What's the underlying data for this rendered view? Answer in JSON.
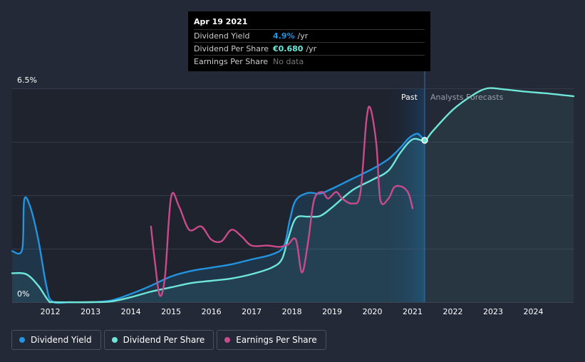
{
  "tooltip": {
    "date": "Apr 19 2021",
    "rows": [
      {
        "label": "Dividend Yield",
        "value": "4.9%",
        "unit": "/yr",
        "color": "#2394df"
      },
      {
        "label": "Dividend Per Share",
        "value": "€0.680",
        "unit": "/yr",
        "color": "#6ee7d8"
      },
      {
        "label": "Earnings Per Share",
        "value": "No data",
        "unit": "",
        "color": "#777777"
      }
    ]
  },
  "legend": [
    {
      "label": "Dividend Yield",
      "color": "#2394df"
    },
    {
      "label": "Dividend Per Share",
      "color": "#6ee7d8"
    },
    {
      "label": "Earnings Per Share",
      "color": "#c94b8c"
    }
  ],
  "chart_data": {
    "type": "line",
    "y_top_label": "6.5%",
    "y_bottom_label": "0%",
    "ylim": [
      0,
      6.5
    ],
    "xlim": [
      2011.05,
      2025.0
    ],
    "x_ticks": [
      2012,
      2013,
      2014,
      2015,
      2016,
      2017,
      2018,
      2019,
      2020,
      2021,
      2022,
      2023,
      2024
    ],
    "past_label": "Past",
    "forecast_label": "Analysts Forecasts",
    "past_band_start": 2020.3,
    "current_x": 2021.3,
    "grid": true,
    "series": [
      {
        "name": "Dividend Yield",
        "color": "#2394df",
        "points": [
          [
            2011.05,
            1.55
          ],
          [
            2011.3,
            1.6
          ],
          [
            2011.35,
            3.1
          ],
          [
            2011.5,
            2.9
          ],
          [
            2011.7,
            1.9
          ],
          [
            2011.9,
            0.5
          ],
          [
            2012.05,
            0.02
          ],
          [
            2012.5,
            0.0
          ],
          [
            2013.0,
            0.0
          ],
          [
            2013.5,
            0.05
          ],
          [
            2014.0,
            0.25
          ],
          [
            2014.5,
            0.5
          ],
          [
            2015.0,
            0.78
          ],
          [
            2015.5,
            0.95
          ],
          [
            2016.0,
            1.05
          ],
          [
            2016.5,
            1.15
          ],
          [
            2017.0,
            1.3
          ],
          [
            2017.5,
            1.45
          ],
          [
            2017.8,
            1.7
          ],
          [
            2017.95,
            2.5
          ],
          [
            2018.1,
            3.1
          ],
          [
            2018.4,
            3.32
          ],
          [
            2018.7,
            3.3
          ],
          [
            2019.0,
            3.45
          ],
          [
            2019.5,
            3.75
          ],
          [
            2020.0,
            4.05
          ],
          [
            2020.4,
            4.35
          ],
          [
            2020.7,
            4.7
          ],
          [
            2020.9,
            4.98
          ],
          [
            2021.1,
            5.12
          ],
          [
            2021.2,
            5.05
          ],
          [
            2021.3,
            4.9
          ]
        ]
      },
      {
        "name": "Dividend Per Share",
        "color": "#6ee7d8",
        "points": [
          [
            2011.05,
            0.88
          ],
          [
            2011.4,
            0.85
          ],
          [
            2011.7,
            0.5
          ],
          [
            2011.95,
            0.05
          ],
          [
            2012.1,
            0.0
          ],
          [
            2013.0,
            0.0
          ],
          [
            2013.5,
            0.02
          ],
          [
            2014.0,
            0.15
          ],
          [
            2014.5,
            0.32
          ],
          [
            2015.0,
            0.45
          ],
          [
            2015.5,
            0.58
          ],
          [
            2016.0,
            0.65
          ],
          [
            2016.5,
            0.72
          ],
          [
            2017.0,
            0.85
          ],
          [
            2017.5,
            1.05
          ],
          [
            2017.75,
            1.3
          ],
          [
            2017.9,
            1.9
          ],
          [
            2018.1,
            2.55
          ],
          [
            2018.4,
            2.6
          ],
          [
            2018.7,
            2.62
          ],
          [
            2019.0,
            2.88
          ],
          [
            2019.5,
            3.4
          ],
          [
            2020.0,
            3.72
          ],
          [
            2020.4,
            4.0
          ],
          [
            2020.7,
            4.55
          ],
          [
            2021.0,
            4.95
          ],
          [
            2021.3,
            4.92
          ],
          [
            2021.5,
            5.2
          ],
          [
            2022.0,
            5.85
          ],
          [
            2022.5,
            6.3
          ],
          [
            2022.85,
            6.5
          ],
          [
            2023.2,
            6.48
          ],
          [
            2023.8,
            6.4
          ],
          [
            2024.4,
            6.34
          ],
          [
            2025.0,
            6.26
          ]
        ]
      },
      {
        "name": "Earnings Per Share",
        "color": "#c94b8c",
        "points": [
          [
            2014.5,
            2.3
          ],
          [
            2014.6,
            1.2
          ],
          [
            2014.72,
            0.2
          ],
          [
            2014.85,
            0.8
          ],
          [
            2015.0,
            3.2
          ],
          [
            2015.2,
            2.9
          ],
          [
            2015.45,
            2.2
          ],
          [
            2015.75,
            2.3
          ],
          [
            2016.0,
            1.9
          ],
          [
            2016.25,
            1.85
          ],
          [
            2016.5,
            2.2
          ],
          [
            2016.75,
            2.0
          ],
          [
            2017.0,
            1.72
          ],
          [
            2017.4,
            1.72
          ],
          [
            2017.7,
            1.68
          ],
          [
            2017.9,
            1.75
          ],
          [
            2018.1,
            1.9
          ],
          [
            2018.25,
            0.9
          ],
          [
            2018.4,
            1.8
          ],
          [
            2018.55,
            3.1
          ],
          [
            2018.75,
            3.35
          ],
          [
            2018.9,
            3.15
          ],
          [
            2019.1,
            3.35
          ],
          [
            2019.25,
            3.15
          ],
          [
            2019.5,
            3.0
          ],
          [
            2019.7,
            3.3
          ],
          [
            2019.85,
            5.5
          ],
          [
            2019.95,
            5.9
          ],
          [
            2020.1,
            4.8
          ],
          [
            2020.2,
            3.1
          ],
          [
            2020.4,
            3.15
          ],
          [
            2020.55,
            3.5
          ],
          [
            2020.75,
            3.5
          ],
          [
            2020.9,
            3.3
          ],
          [
            2021.0,
            2.85
          ]
        ]
      }
    ]
  }
}
